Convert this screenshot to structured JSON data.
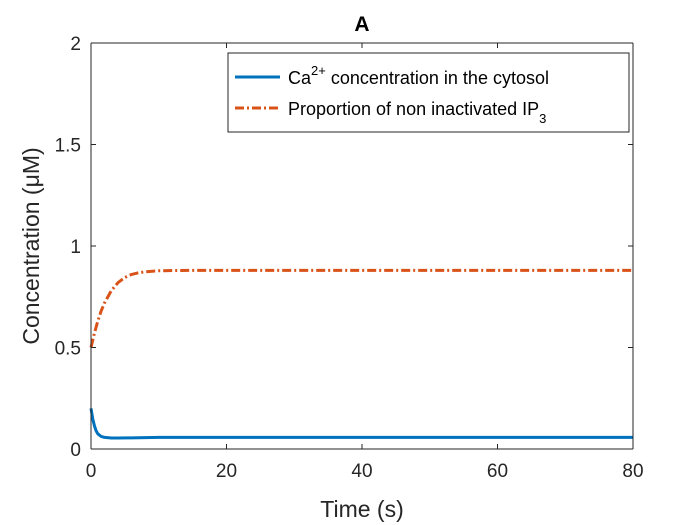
{
  "chart_data": {
    "type": "line",
    "title": "A",
    "xlabel": "Time (s)",
    "ylabel": "Concentration (μM)",
    "xlim": [
      0,
      80
    ],
    "ylim": [
      0,
      2
    ],
    "xticks": [
      0,
      20,
      40,
      60,
      80
    ],
    "xtick_labels": [
      "0",
      "20",
      "40",
      "60",
      "80"
    ],
    "yticks": [
      0,
      0.5,
      1,
      1.5,
      2
    ],
    "ytick_labels": [
      "0",
      "0.5",
      "1",
      "1.5",
      "2"
    ],
    "grid": false,
    "legend_position": "top-right",
    "series": [
      {
        "name": "Ca2+ concentration in the cytosol",
        "legend_label": {
          "base": "Ca",
          "sup": "2+",
          "rest": " concentration in the cytosol"
        },
        "color": "#0072BD",
        "line_style": "solid",
        "x": [
          0,
          0.25,
          0.5,
          0.75,
          1,
          1.5,
          2,
          3,
          4,
          6,
          8,
          10,
          15,
          20,
          30,
          40,
          50,
          60,
          70,
          80
        ],
        "y": [
          0.2,
          0.15,
          0.115,
          0.09,
          0.075,
          0.062,
          0.057,
          0.054,
          0.054,
          0.055,
          0.056,
          0.057,
          0.057,
          0.057,
          0.057,
          0.057,
          0.057,
          0.057,
          0.057,
          0.057
        ]
      },
      {
        "name": "Proportion of non inactivated IP3",
        "legend_label": {
          "base": "Proportion of non inactivated IP",
          "sub": "3"
        },
        "color": "#D95319",
        "line_style": "dashdot",
        "x": [
          0,
          0.5,
          1,
          1.5,
          2,
          3,
          4,
          5,
          6,
          7,
          8,
          10,
          12,
          15,
          20,
          30,
          40,
          50,
          60,
          70,
          80
        ],
        "y": [
          0.5,
          0.57,
          0.63,
          0.68,
          0.72,
          0.78,
          0.82,
          0.845,
          0.86,
          0.868,
          0.873,
          0.878,
          0.879,
          0.88,
          0.88,
          0.88,
          0.88,
          0.88,
          0.88,
          0.88,
          0.88
        ]
      }
    ]
  }
}
